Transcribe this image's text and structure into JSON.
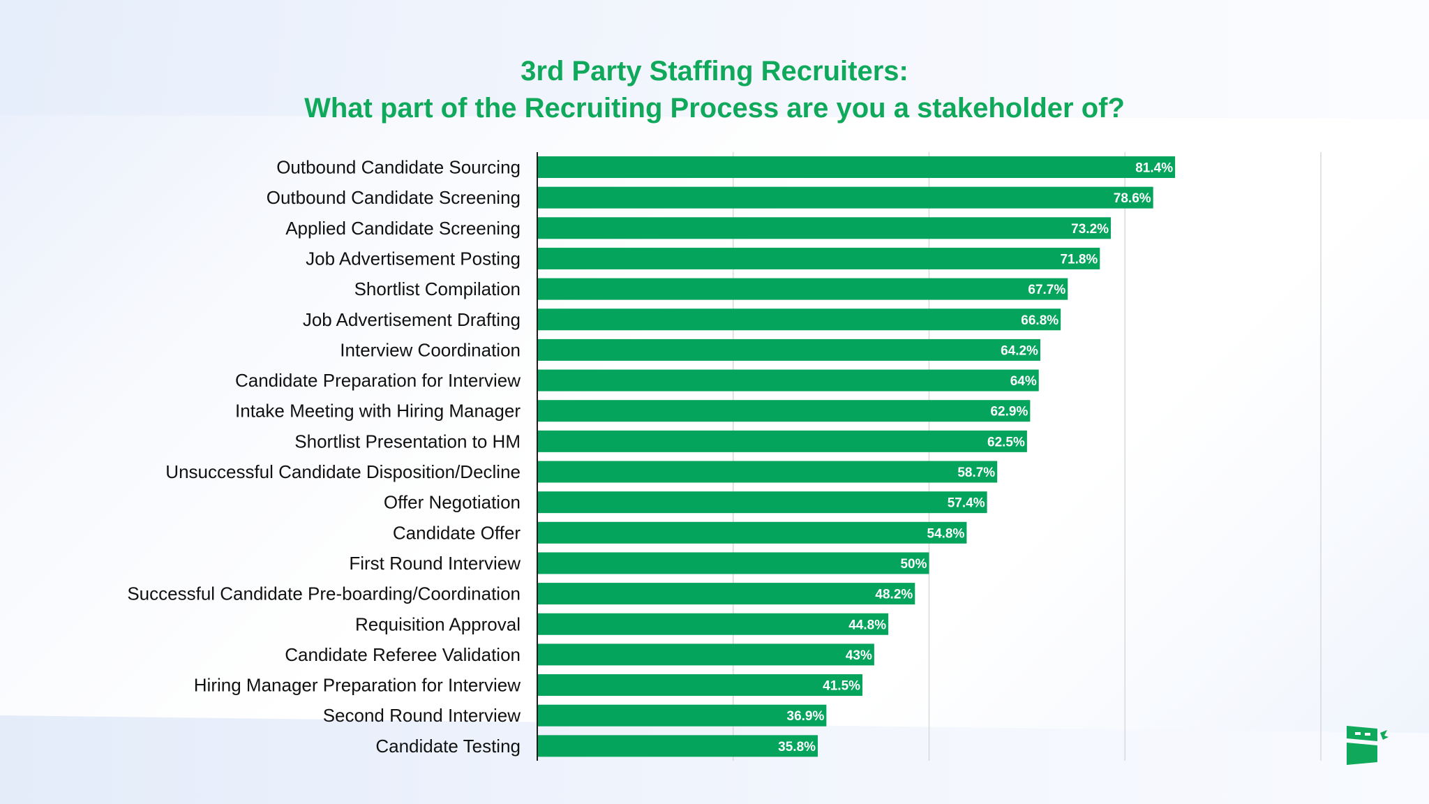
{
  "page": {
    "title_line1": "3rd Party Staffing Recruiters:",
    "title_line2": "What part of the Recruiting Process are you a stakeholder of?"
  },
  "colors": {
    "bar": "#04a45c",
    "title": "#10a85a",
    "grid": "#d9d9d9",
    "axis": "#1a1a1a"
  },
  "logo": {
    "icon": "brand-logo-icon"
  },
  "chart_data": {
    "type": "bar",
    "orientation": "horizontal",
    "categories": [
      "Outbound Candidate Sourcing",
      "Outbound Candidate Screening",
      "Applied Candidate Screening",
      "Job Advertisement Posting",
      "Shortlist Compilation",
      "Job Advertisement Drafting",
      "Interview Coordination",
      "Candidate Preparation for Interview",
      "Intake Meeting with Hiring Manager",
      "Shortlist Presentation to HM",
      "Unsuccessful Candidate Disposition/Decline",
      "Offer Negotiation",
      "Candidate Offer",
      "First Round Interview",
      "Successful Candidate Pre-boarding/Coordination",
      "Requisition Approval",
      "Candidate Referee Validation",
      "Hiring Manager Preparation for Interview",
      "Second Round Interview",
      "Candidate Testing"
    ],
    "values": [
      81.4,
      78.6,
      73.2,
      71.8,
      67.7,
      66.8,
      64.2,
      64,
      62.9,
      62.5,
      58.7,
      57.4,
      54.8,
      50,
      48.2,
      44.8,
      43,
      41.5,
      36.9,
      35.8
    ],
    "data_labels": [
      "81.4%",
      "78.6%",
      "73.2%",
      "71.8%",
      "67.7%",
      "66.8%",
      "64.2%",
      "64%",
      "62.9%",
      "62.5%",
      "58.7%",
      "57.4%",
      "54.8%",
      "50%",
      "48.2%",
      "44.8%",
      "43%",
      "41.5%",
      "36.9%",
      "35.8%"
    ],
    "xlim": [
      0,
      100
    ],
    "grid": true,
    "tick_labels_visible": false,
    "legend": "none"
  }
}
